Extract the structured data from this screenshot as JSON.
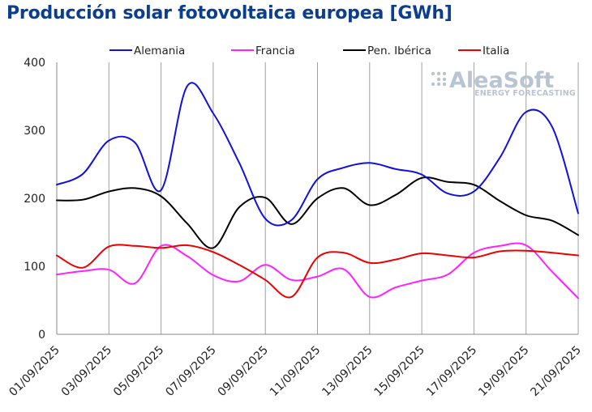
{
  "chart_data": {
    "type": "line",
    "title": "Producción solar fotovoltaica europea [GWh]",
    "xlabel": "",
    "ylabel": "",
    "ylim": [
      0,
      400
    ],
    "yticks": [
      0,
      100,
      200,
      300,
      400
    ],
    "grid": {
      "vertical": true,
      "horizontal": false
    },
    "legend_position": "top",
    "x": [
      "01/09/2025",
      "02/09/2025",
      "03/09/2025",
      "04/09/2025",
      "05/09/2025",
      "06/09/2025",
      "07/09/2025",
      "08/09/2025",
      "09/09/2025",
      "10/09/2025",
      "11/09/2025",
      "12/09/2025",
      "13/09/2025",
      "14/09/2025",
      "15/09/2025",
      "16/09/2025",
      "17/09/2025",
      "18/09/2025",
      "19/09/2025",
      "20/09/2025",
      "21/09/2025"
    ],
    "xtick_labels": [
      "01/09/2025",
      "03/09/2025",
      "05/09/2025",
      "07/09/2025",
      "09/09/2025",
      "11/09/2025",
      "13/09/2025",
      "15/09/2025",
      "17/09/2025",
      "19/09/2025",
      "21/09/2025"
    ],
    "series": [
      {
        "name": "Alemania",
        "color": "#1010e0",
        "values": [
          220,
          236,
          285,
          282,
          212,
          365,
          325,
          252,
          170,
          168,
          228,
          245,
          252,
          243,
          235,
          207,
          210,
          260,
          327,
          305,
          178
        ]
      },
      {
        "name": "Francia",
        "color": "#ff22ff",
        "values": [
          88,
          93,
          95,
          75,
          130,
          115,
          87,
          78,
          102,
          80,
          85,
          96,
          55,
          69,
          79,
          88,
          120,
          130,
          131,
          92,
          53
        ]
      },
      {
        "name": "Pen. Ibérica",
        "color": "#000000",
        "values": [
          197,
          198,
          210,
          215,
          203,
          163,
          127,
          187,
          201,
          162,
          200,
          215,
          190,
          205,
          230,
          224,
          220,
          196,
          175,
          167,
          146
        ]
      },
      {
        "name": "Italia",
        "color": "#ee0000",
        "values": [
          116,
          98,
          129,
          130,
          127,
          131,
          121,
          102,
          80,
          55,
          113,
          120,
          105,
          110,
          119,
          116,
          113,
          122,
          123,
          120,
          116
        ]
      }
    ]
  },
  "watermark": {
    "brand": "AleaSoft",
    "tagline": "ENERGY FORECASTING"
  },
  "colors": {
    "title": "#0b3e8c",
    "grid": "#a0a0a0",
    "axis": "#888888"
  }
}
